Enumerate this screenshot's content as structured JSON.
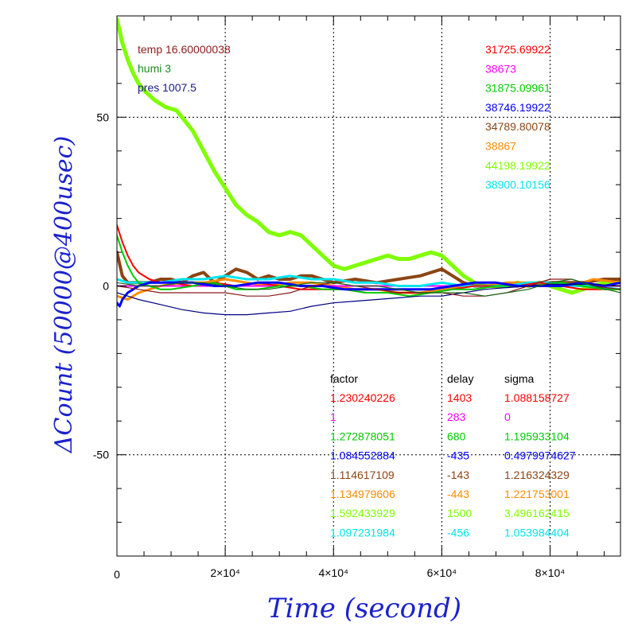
{
  "chart_data": {
    "type": "line",
    "xlabel": "Time (second)",
    "ylabel": "ΔCount (50000@400usec)",
    "xlim": [
      0,
      93000
    ],
    "ylim": [
      -80,
      80
    ],
    "grid": true,
    "x_ticks": [
      {
        "value": 0,
        "label": "0"
      },
      {
        "value": 20000,
        "label": "2×10⁴"
      },
      {
        "value": 40000,
        "label": "4×10⁴"
      },
      {
        "value": 60000,
        "label": "6×10⁴"
      },
      {
        "value": 80000,
        "label": "8×10⁴"
      }
    ],
    "y_ticks": [
      {
        "value": 50,
        "label": "50"
      },
      {
        "value": 0,
        "label": "0"
      },
      {
        "value": -50,
        "label": "-50"
      }
    ],
    "weather": [
      {
        "text": "temp 16.60000038",
        "color": "#8b1a1a"
      },
      {
        "text": "humi 3",
        "color": "#1a8c1a"
      },
      {
        "text": "pres 1007.5",
        "color": "#1a1a80"
      }
    ],
    "means": [
      {
        "text": "31725.69922",
        "color": "#ff0000"
      },
      {
        "text": "38673",
        "color": "#ff00ff"
      },
      {
        "text": "31875.09961",
        "color": "#00cc00"
      },
      {
        "text": "38746.19922",
        "color": "#0000ff"
      },
      {
        "text": "34789.80078",
        "color": "#8b4513"
      },
      {
        "text": "38867",
        "color": "#ff8c00"
      },
      {
        "text": "44198.19922",
        "color": "#7fff00"
      },
      {
        "text": "38900.10156",
        "color": "#00e5ee"
      }
    ],
    "table": {
      "headers": [
        "factor",
        "delay",
        "sigma"
      ],
      "rows": [
        {
          "factor": "1.230240226",
          "delay": "1403",
          "sigma": "1.088158727",
          "color": "#ff0000"
        },
        {
          "factor": "1",
          "delay": "283",
          "sigma": "0",
          "color": "#ff00ff"
        },
        {
          "factor": "1.272878051",
          "delay": "680",
          "sigma": "1.195933104",
          "color": "#00cc00"
        },
        {
          "factor": "1.084552884",
          "delay": "-435",
          "sigma": "0.4979974627",
          "color": "#0000ff"
        },
        {
          "factor": "1.114617109",
          "delay": "-143",
          "sigma": "1.216324329",
          "color": "#8b4513"
        },
        {
          "factor": "1.134979606",
          "delay": "-443",
          "sigma": "1.221753001",
          "color": "#ff8c00"
        },
        {
          "factor": "1.592433929",
          "delay": "1500",
          "sigma": "3.496162415",
          "color": "#7fff00"
        },
        {
          "factor": "1.097231984",
          "delay": "-456",
          "sigma": "1.053984404",
          "color": "#00e5ee"
        }
      ]
    },
    "series": [
      {
        "color": "#7fff00",
        "width": 5,
        "x": [
          0,
          1000,
          2000,
          3000,
          4000,
          5000,
          7000,
          9000,
          11000,
          12000,
          14000,
          16000,
          18000,
          20000,
          22000,
          24000,
          26000,
          28000,
          30000,
          32000,
          34000,
          36000,
          38000,
          40000,
          42000,
          44000,
          46000,
          48000,
          50000,
          52000,
          54000,
          56000,
          58000,
          60000,
          62000,
          64000,
          66000,
          68000,
          70000,
          72000,
          74000,
          76000,
          78000,
          80000,
          82000,
          84000,
          86000,
          88000,
          90000,
          93000
        ],
        "y": [
          79,
          72,
          67,
          63,
          60,
          58,
          55,
          53,
          52,
          50,
          46,
          40,
          34,
          29,
          24,
          21,
          19,
          16,
          15,
          16,
          15,
          12,
          9,
          6,
          5,
          6,
          7,
          8,
          9,
          8,
          8,
          9,
          10,
          9,
          6,
          3,
          1,
          0,
          0,
          0,
          1,
          0,
          1,
          0,
          -1,
          -2,
          -1,
          0,
          1,
          1
        ]
      },
      {
        "color": "#8b4513",
        "width": 4,
        "x": [
          0,
          1000,
          2000,
          4000,
          6000,
          8000,
          10000,
          12000,
          14000,
          16000,
          18000,
          20000,
          22000,
          24000,
          26000,
          28000,
          30000,
          32000,
          34000,
          36000,
          38000,
          40000,
          44000,
          48000,
          52000,
          56000,
          60000,
          62000,
          64000,
          66000,
          70000,
          74000,
          78000,
          82000,
          86000,
          90000,
          93000
        ],
        "y": [
          10,
          3,
          1,
          1,
          1,
          2,
          2,
          1,
          3,
          4,
          1,
          3,
          5,
          4,
          2,
          3,
          2,
          2,
          3,
          3,
          2,
          1,
          2,
          1,
          2,
          3,
          5,
          3,
          1,
          0,
          0,
          0,
          1,
          1,
          1,
          2,
          2
        ]
      },
      {
        "color": "#ff8c00",
        "width": 3,
        "x": [
          0,
          2000,
          4000,
          8000,
          12000,
          16000,
          20000,
          24000,
          28000,
          32000,
          36000,
          40000,
          44000,
          48000,
          52000,
          56000,
          60000,
          64000,
          68000,
          72000,
          76000,
          80000,
          84000,
          88000,
          93000
        ],
        "y": [
          -3,
          -4,
          -2,
          0,
          1,
          1,
          2,
          1,
          0,
          1,
          1,
          0,
          -1,
          -1,
          -2,
          -2,
          -1,
          0,
          0,
          1,
          1,
          1,
          0,
          2,
          1
        ]
      },
      {
        "color": "#ff00ff",
        "width": 2,
        "x": [
          0,
          5000,
          10000,
          20000,
          30000,
          40000,
          50000,
          60000,
          70000,
          80000,
          93000
        ],
        "y": [
          0,
          0,
          0,
          0,
          0,
          0,
          0,
          0,
          0,
          0,
          0
        ]
      },
      {
        "color": "#00e5ee",
        "width": 3,
        "x": [
          0,
          2000,
          4000,
          8000,
          12000,
          16000,
          20000,
          24000,
          28000,
          32000,
          36000,
          40000,
          44000,
          48000,
          52000,
          56000,
          60000,
          64000,
          68000,
          72000,
          76000,
          80000,
          84000,
          88000,
          93000
        ],
        "y": [
          2,
          1,
          1,
          1,
          2,
          2,
          3,
          2,
          2,
          3,
          2,
          2,
          1,
          1,
          0,
          0,
          1,
          0,
          0,
          0,
          1,
          1,
          0,
          0,
          -1
        ]
      },
      {
        "color": "#ff0000",
        "width": 2,
        "x": [
          0,
          1000,
          2000,
          3000,
          4000,
          6000,
          8000,
          10000,
          14000,
          18000,
          22000,
          26000,
          30000,
          34000,
          38000,
          42000,
          46000,
          50000,
          54000,
          58000,
          62000,
          66000,
          70000,
          74000,
          78000,
          82000,
          86000,
          90000,
          93000
        ],
        "y": [
          18,
          13,
          9,
          6,
          4,
          2,
          1,
          1,
          0,
          1,
          0,
          1,
          0,
          -1,
          -1,
          -1,
          -2,
          -2,
          -2,
          -2,
          -1,
          0,
          0,
          0,
          1,
          0,
          -1,
          -1,
          -1
        ]
      },
      {
        "color": "#00cc00",
        "width": 2,
        "x": [
          0,
          1000,
          2000,
          3000,
          4000,
          6000,
          8000,
          10000,
          14000,
          18000,
          22000,
          26000,
          30000,
          34000,
          38000,
          42000,
          46000,
          50000,
          54000,
          58000,
          62000,
          66000,
          70000,
          74000,
          78000,
          82000,
          86000,
          90000,
          93000
        ],
        "y": [
          15,
          10,
          6,
          3,
          1,
          0,
          -1,
          -1,
          0,
          1,
          -1,
          -1,
          0,
          0,
          -1,
          -1,
          -2,
          -2,
          -3,
          -2,
          -1,
          -1,
          0,
          0,
          0,
          1,
          0,
          -1,
          -1
        ]
      },
      {
        "color": "#0000ff",
        "width": 3,
        "x": [
          0,
          500,
          1000,
          2000,
          3000,
          4000,
          6000,
          10000,
          14000,
          18000,
          22000,
          26000,
          30000,
          34000,
          38000,
          42000,
          46000,
          50000,
          54000,
          58000,
          62000,
          66000,
          70000,
          74000,
          78000,
          82000,
          86000,
          90000,
          93000
        ],
        "y": [
          -5,
          -6,
          -4,
          -2,
          -1,
          0,
          1,
          1,
          1,
          0,
          0,
          1,
          1,
          0,
          0,
          -1,
          -1,
          -1,
          -1,
          -1,
          0,
          1,
          1,
          0,
          0,
          0,
          1,
          0,
          1
        ]
      },
      {
        "color": "#000080",
        "width": 1.2,
        "x": [
          0,
          2000,
          4000,
          8000,
          12000,
          16000,
          20000,
          24000,
          28000,
          32000,
          36000,
          40000,
          44000,
          48000,
          52000,
          56000,
          60000,
          64000,
          68000,
          72000,
          76000,
          80000,
          84000,
          88000,
          93000
        ],
        "y": [
          -2,
          -3,
          -4,
          -5.5,
          -7,
          -8,
          -8.5,
          -8.5,
          -8,
          -7.5,
          -6,
          -5,
          -4.5,
          -4,
          -3.5,
          -3,
          -3,
          -2,
          -1,
          -0.5,
          0,
          0.5,
          0.5,
          0.5,
          0
        ]
      },
      {
        "color": "#8b1a1a",
        "width": 1.2,
        "x": [
          0,
          4000,
          8000,
          12000,
          16000,
          20000,
          24000,
          28000,
          32000,
          36000,
          40000,
          44000,
          48000,
          52000,
          56000,
          60000,
          64000,
          68000,
          72000,
          76000,
          80000,
          84000,
          88000,
          93000
        ],
        "y": [
          0,
          -1,
          -2,
          -2,
          -2,
          -2,
          -3,
          -3,
          -2,
          0,
          1,
          0,
          -1,
          -2,
          -2,
          -2,
          -3,
          -3,
          -2,
          0,
          2,
          2,
          0,
          -1
        ]
      },
      {
        "color": "#1a6b1a",
        "width": 1.2,
        "x": [
          0,
          4000,
          8000,
          12000,
          16000,
          20000,
          24000,
          28000,
          32000,
          36000,
          40000,
          44000,
          48000,
          52000,
          56000,
          60000,
          64000,
          68000,
          72000,
          76000,
          80000,
          84000,
          88000,
          93000
        ],
        "y": [
          1,
          0,
          0,
          1,
          1,
          0,
          -1,
          -1,
          0,
          1,
          1,
          0,
          0,
          -1,
          -2,
          -2,
          -2,
          -3,
          -2,
          -1,
          1,
          2,
          0,
          -2
        ]
      }
    ]
  }
}
